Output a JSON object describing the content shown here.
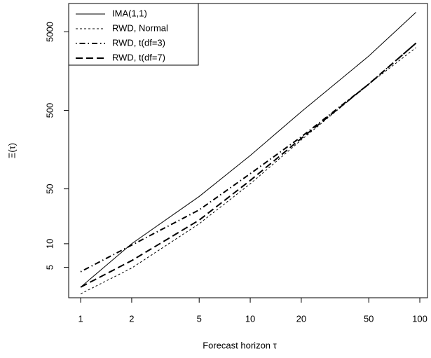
{
  "chart_data": {
    "type": "line",
    "xlabel": "Forecast horizon τ",
    "ylabel": "Ξ(τ)",
    "xlog": true,
    "ylog": true,
    "x": [
      1,
      2,
      5,
      10,
      20,
      50,
      95
    ],
    "xlim": [
      0.85,
      111
    ],
    "xticks": [
      1,
      2,
      5,
      10,
      20,
      50,
      100
    ],
    "ylim": [
      2.05,
      11500
    ],
    "yticks": [
      5,
      10,
      50,
      500,
      5000
    ],
    "legend": "top-left",
    "series": [
      {
        "name": "IMA(1,1)",
        "color": "#000000",
        "dash": "solid",
        "values": [
          2.8,
          10,
          40,
          133,
          480,
          2460,
          8900
        ]
      },
      {
        "name": "RWD, Normal",
        "color": "#000000",
        "dash": "dashed",
        "values": [
          2.3,
          4.9,
          18,
          58,
          210,
          1080,
          3150
        ]
      },
      {
        "name": "RWD, t(df=3)",
        "color": "#000000",
        "dash": "dotdash",
        "values": [
          4.4,
          9.6,
          27,
          78,
          230,
          1080,
          3600
        ]
      },
      {
        "name": "RWD, t(df=7)",
        "color": "#000000",
        "dash": "longdash",
        "values": [
          2.8,
          6.1,
          20,
          64,
          220,
          1080,
          3600
        ]
      }
    ]
  }
}
